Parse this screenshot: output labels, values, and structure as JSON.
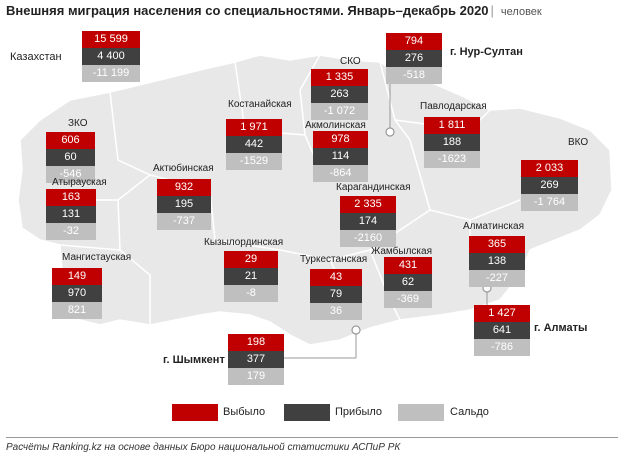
{
  "title": "Внешняя миграция населения со специальностями. Январь–декабрь 2020",
  "unit": "человек",
  "source": "Расчёты Ranking.kz на основе данных Бюро национальной статистики АСПиР РК",
  "legend": [
    {
      "key": "out",
      "label": "Выбыло",
      "color": "#c00000"
    },
    {
      "key": "in",
      "label": "Прибыло",
      "color": "#404040"
    },
    {
      "key": "bal",
      "label": "Сальдо",
      "color": "#bfbfbf"
    }
  ],
  "regions": [
    {
      "id": "kazakhstan",
      "name": "Казахстан",
      "out": "15 599",
      "in": "4 400",
      "bal": "-11 199"
    },
    {
      "id": "sko",
      "name": "СКО",
      "out": "1 335",
      "in": "263",
      "bal": "-1 072"
    },
    {
      "id": "nur-sultan",
      "name": "г. Нур-Султан",
      "out": "794",
      "in": "276",
      "bal": "-518"
    },
    {
      "id": "kostanay",
      "name": "Костанайская",
      "out": "1 971",
      "in": "442",
      "bal": "-1529"
    },
    {
      "id": "akmola",
      "name": "Акмолинская",
      "out": "978",
      "in": "114",
      "bal": "-864"
    },
    {
      "id": "pavlodar",
      "name": "Павлодарская",
      "out": "1 811",
      "in": "188",
      "bal": "-1623"
    },
    {
      "id": "zko",
      "name": "ЗКО",
      "out": "606",
      "in": "60",
      "bal": "-546"
    },
    {
      "id": "vko",
      "name": "ВКО",
      "out": "2 033",
      "in": "269",
      "bal": "-1 764"
    },
    {
      "id": "aktobe",
      "name": "Актюбинская",
      "out": "932",
      "in": "195",
      "bal": "-737"
    },
    {
      "id": "atyrau",
      "name": "Атырауская",
      "out": "163",
      "in": "131",
      "bal": "-32"
    },
    {
      "id": "karaganda",
      "name": "Карагандинская",
      "out": "2 335",
      "in": "174",
      "bal": "-2160"
    },
    {
      "id": "almaty-obl",
      "name": "Алматинская",
      "out": "365",
      "in": "138",
      "bal": "-227"
    },
    {
      "id": "kyzylorda",
      "name": "Кызылординская",
      "out": "29",
      "in": "21",
      "bal": "-8"
    },
    {
      "id": "mangistau",
      "name": "Мангистауская",
      "out": "149",
      "in": "970",
      "bal": "821"
    },
    {
      "id": "turkestan",
      "name": "Туркестанская",
      "out": "43",
      "in": "79",
      "bal": "36"
    },
    {
      "id": "zhambyl",
      "name": "Жамбылская",
      "out": "431",
      "in": "62",
      "bal": "-369"
    },
    {
      "id": "almaty-city",
      "name": "г. Алматы",
      "out": "1 427",
      "in": "641",
      "bal": "-786"
    },
    {
      "id": "shymkent",
      "name": "г. Шымкент",
      "out": "198",
      "in": "377",
      "bal": "179"
    }
  ]
}
